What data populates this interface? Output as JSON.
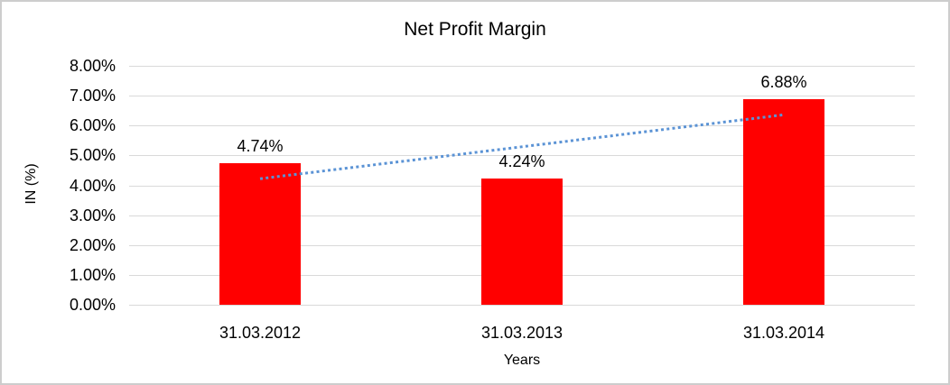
{
  "frame": {
    "background_color": "#ffffff",
    "border_color": "#cdcdcd"
  },
  "chart_data": {
    "type": "bar",
    "title": "Net Profit Margin",
    "xlabel": "Years",
    "ylabel": "IN (%)",
    "categories": [
      "31.03.2012",
      "31.03.2013",
      "31.03.2014"
    ],
    "values": [
      4.74,
      4.24,
      6.88
    ],
    "data_labels": [
      "4.74%",
      "4.24%",
      "6.88%"
    ],
    "ylim": [
      0,
      8
    ],
    "ytick_values": [
      0,
      1,
      2,
      3,
      4,
      5,
      6,
      7,
      8
    ],
    "ytick_labels": [
      "0.00%",
      "1.00%",
      "2.00%",
      "3.00%",
      "4.00%",
      "5.00%",
      "6.00%",
      "7.00%",
      "8.00%"
    ],
    "grid": true,
    "legend_position": "none",
    "bar_color": "#ff0000",
    "gridline_color": "#d9d9d9",
    "text_color": "#000000",
    "trendline": {
      "type": "linear",
      "style": "dotted",
      "color": "#5b93d5",
      "value_at_first_category": 4.22,
      "value_at_last_category": 6.36
    }
  }
}
